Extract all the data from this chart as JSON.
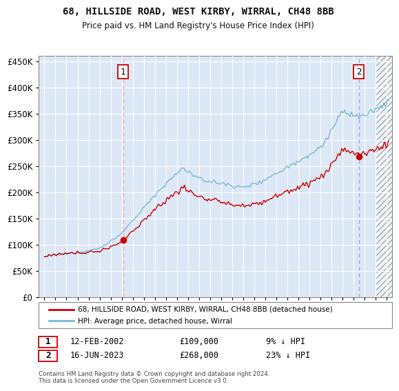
{
  "title": "68, HILLSIDE ROAD, WEST KIRBY, WIRRAL, CH48 8BB",
  "subtitle": "Price paid vs. HM Land Registry's House Price Index (HPI)",
  "hpi_label": "HPI: Average price, detached house, Wirral",
  "property_label": "68, HILLSIDE ROAD, WEST KIRBY, WIRRAL, CH48 8BB (detached house)",
  "hpi_color": "#7ab8d9",
  "property_color": "#cc0000",
  "vline_color1": "#ffaaaa",
  "vline_color2": "#cc0000",
  "vline2_color": "#aaaacc",
  "bg_color": "#dce8f5",
  "grid_color": "#ffffff",
  "transaction1": {
    "date_num": 2002.12,
    "price": 109000,
    "label": "1",
    "date_str": "12-FEB-2002",
    "pct": "9%"
  },
  "transaction2": {
    "date_num": 2023.46,
    "price": 268000,
    "label": "2",
    "date_str": "16-JUN-2023",
    "pct": "23%"
  },
  "ylim": [
    0,
    460000
  ],
  "xlim": [
    1994.5,
    2026.5
  ],
  "yticks": [
    0,
    50000,
    100000,
    150000,
    200000,
    250000,
    300000,
    350000,
    400000,
    450000
  ],
  "footer": "Contains HM Land Registry data © Crown copyright and database right 2024.\nThis data is licensed under the Open Government Licence v3.0.",
  "hatch_start": 2025.0
}
